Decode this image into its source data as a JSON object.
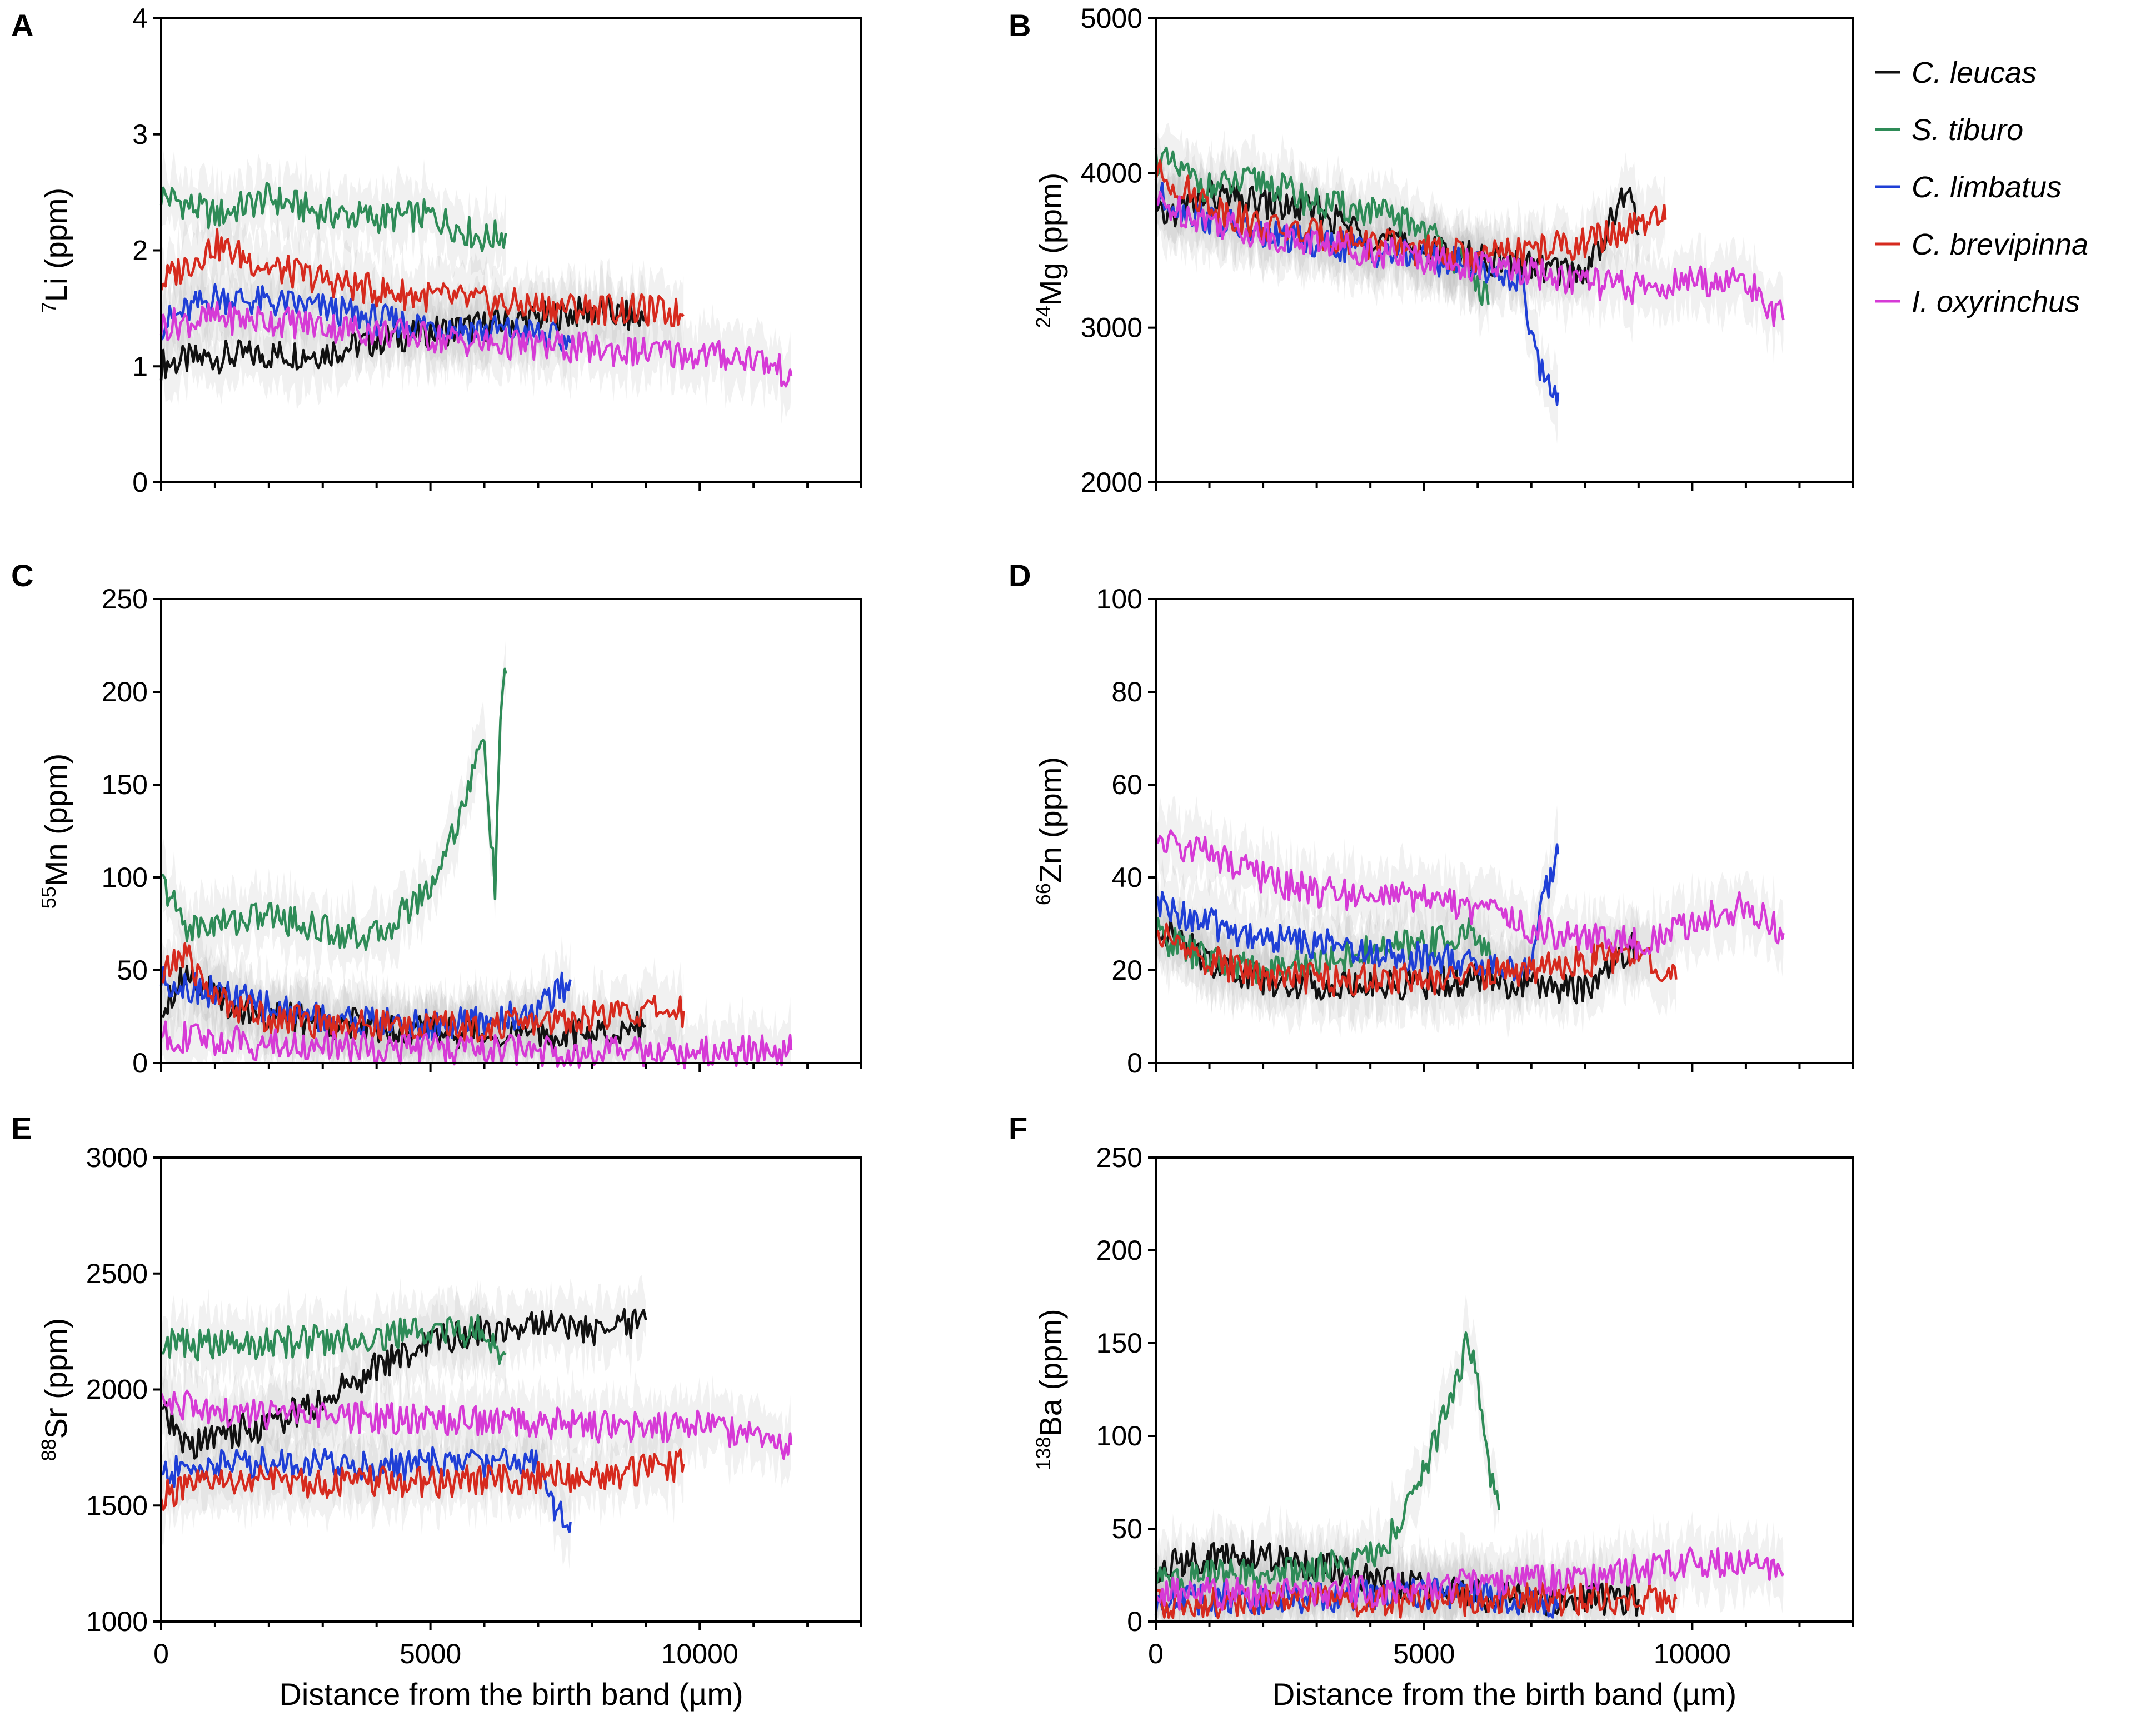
{
  "colors": {
    "C. leucas": "#111111",
    "S. tiburo": "#2e8b57",
    "C. limbatus": "#1f3fd6",
    "C. brevipinna": "#d62a1e",
    "I. oxyrinchus": "#d63ad6",
    "band": "#9a9a9a"
  },
  "legend": {
    "items": [
      "C. leucas",
      "S. tiburo",
      "C. limbatus",
      "C. brevipinna",
      "I. oxyrinchus"
    ]
  },
  "x_axis": {
    "label": "Distance from the birth band (µm)",
    "ticks": [
      0,
      5000,
      10000
    ],
    "tick_labels": [
      "0",
      "5000",
      "10000"
    ]
  },
  "chart_data": [
    {
      "panel": "A",
      "type": "line",
      "ylabel_sup": "7",
      "ylabel_main": "Li (ppm)",
      "xlim": [
        0,
        13000
      ],
      "ylim": [
        0,
        4
      ],
      "yticks": [
        0,
        1,
        2,
        3,
        4
      ],
      "ytick_labels": [
        "0",
        "1",
        "2",
        "3",
        "4"
      ],
      "series": [
        {
          "name": "C. leucas",
          "x": [
            0,
            1000,
            2000,
            3000,
            4000,
            5000,
            6000,
            7000,
            8000,
            9000
          ],
          "y": [
            1.02,
            1.08,
            1.1,
            1.12,
            1.22,
            1.3,
            1.35,
            1.42,
            1.48,
            1.4
          ]
        },
        {
          "name": "S. tiburo",
          "x": [
            0,
            1000,
            2000,
            3000,
            4000,
            5000,
            6000,
            6400
          ],
          "y": [
            2.48,
            2.3,
            2.45,
            2.32,
            2.28,
            2.3,
            2.1,
            2.15
          ]
        },
        {
          "name": "C. limbatus",
          "x": [
            0,
            1000,
            2000,
            3000,
            4000,
            5000,
            6000,
            7000,
            7600
          ],
          "y": [
            1.36,
            1.6,
            1.55,
            1.5,
            1.4,
            1.35,
            1.32,
            1.28,
            1.2
          ]
        },
        {
          "name": "C. brevipinna",
          "x": [
            0,
            1000,
            2000,
            3000,
            4000,
            5000,
            6000,
            7000,
            8000,
            9000,
            9700
          ],
          "y": [
            1.72,
            2.05,
            1.85,
            1.75,
            1.65,
            1.6,
            1.55,
            1.52,
            1.5,
            1.48,
            1.45
          ]
        },
        {
          "name": "I. oxyrinchus",
          "x": [
            0,
            1000,
            2000,
            3000,
            4000,
            5000,
            6000,
            7000,
            8000,
            9000,
            10000,
            11000,
            11700
          ],
          "y": [
            1.35,
            1.42,
            1.4,
            1.35,
            1.3,
            1.25,
            1.2,
            1.18,
            1.15,
            1.12,
            1.1,
            1.08,
            0.92
          ]
        }
      ]
    },
    {
      "panel": "B",
      "type": "line",
      "ylabel_sup": "24",
      "ylabel_main": "Mg (ppm)",
      "xlim": [
        0,
        13000
      ],
      "ylim": [
        2000,
        5000
      ],
      "yticks": [
        2000,
        3000,
        4000,
        5000
      ],
      "ytick_labels": [
        "2000",
        "3000",
        "4000",
        "5000"
      ],
      "series": [
        {
          "name": "C. leucas",
          "x": [
            0,
            1000,
            2000,
            3000,
            4000,
            5000,
            6000,
            7000,
            8000,
            8800,
            9000
          ],
          "y": [
            3700,
            3850,
            3800,
            3750,
            3600,
            3500,
            3450,
            3400,
            3350,
            3900,
            3600
          ]
        },
        {
          "name": "S. tiburo",
          "x": [
            0,
            1000,
            2000,
            3000,
            4000,
            5000,
            6000,
            6200
          ],
          "y": [
            4100,
            3900,
            3950,
            3800,
            3750,
            3650,
            3300,
            3150
          ]
        },
        {
          "name": "C. limbatus",
          "x": [
            0,
            1000,
            2000,
            3000,
            4000,
            5000,
            6000,
            6800,
            7200,
            7500
          ],
          "y": [
            3850,
            3700,
            3600,
            3550,
            3500,
            3450,
            3400,
            3300,
            2700,
            2580
          ]
        },
        {
          "name": "C. brevipinna",
          "x": [
            0,
            1000,
            2000,
            3000,
            4000,
            5000,
            6000,
            7000,
            8000,
            9000,
            9500
          ],
          "y": [
            4000,
            3800,
            3650,
            3600,
            3550,
            3500,
            3450,
            3500,
            3550,
            3650,
            3700
          ]
        },
        {
          "name": "I. oxyrinchus",
          "x": [
            0,
            1000,
            2000,
            3000,
            4000,
            5000,
            6000,
            7000,
            8000,
            9000,
            10000,
            11000,
            11700
          ],
          "y": [
            3800,
            3700,
            3600,
            3550,
            3500,
            3450,
            3400,
            3350,
            3300,
            3250,
            3300,
            3300,
            3050
          ]
        }
      ]
    },
    {
      "panel": "C",
      "type": "line",
      "ylabel_sup": "55",
      "ylabel_main": "Mn (ppm)",
      "xlim": [
        0,
        13000
      ],
      "ylim": [
        0,
        250
      ],
      "yticks": [
        0,
        50,
        100,
        150,
        200,
        250
      ],
      "ytick_labels": [
        "0",
        "50",
        "100",
        "150",
        "200",
        "250"
      ],
      "series": [
        {
          "name": "C. leucas",
          "x": [
            0,
            500,
            1000,
            2000,
            3000,
            4000,
            5000,
            6000,
            7000,
            8000,
            9000
          ],
          "y": [
            30,
            50,
            35,
            25,
            22,
            20,
            18,
            16,
            15,
            15,
            20
          ]
        },
        {
          "name": "S. tiburo",
          "x": [
            0,
            500,
            1000,
            2000,
            3000,
            4000,
            5000,
            5500,
            6000,
            6200,
            6300,
            6400
          ],
          "y": [
            98,
            72,
            75,
            80,
            72,
            68,
            95,
            130,
            175,
            90,
            190,
            210
          ]
        },
        {
          "name": "C. limbatus",
          "x": [
            0,
            1000,
            2000,
            3000,
            4000,
            5000,
            6000,
            7000,
            7600
          ],
          "y": [
            45,
            38,
            30,
            25,
            22,
            20,
            22,
            28,
            45
          ]
        },
        {
          "name": "C. brevipinna",
          "x": [
            0,
            400,
            1000,
            2000,
            3000,
            4000,
            5000,
            6000,
            7000,
            8000,
            9000,
            9700
          ],
          "y": [
            45,
            60,
            35,
            25,
            22,
            20,
            20,
            20,
            22,
            25,
            28,
            28
          ]
        },
        {
          "name": "I. oxyrinchus",
          "x": [
            0,
            1000,
            2000,
            3000,
            4000,
            5000,
            6000,
            7000,
            8000,
            9000,
            10000,
            11000,
            11700
          ],
          "y": [
            15,
            12,
            10,
            9,
            8,
            8,
            7,
            7,
            6,
            6,
            6,
            7,
            7
          ]
        }
      ]
    },
    {
      "panel": "D",
      "type": "line",
      "ylabel_sup": "66",
      "ylabel_main": "Zn (ppm)",
      "xlim": [
        0,
        13000
      ],
      "ylim": [
        0,
        100
      ],
      "yticks": [
        0,
        20,
        40,
        60,
        80,
        100
      ],
      "ytick_labels": [
        "0",
        "20",
        "40",
        "60",
        "80",
        "100"
      ],
      "series": [
        {
          "name": "C. leucas",
          "x": [
            0,
            1000,
            2000,
            3000,
            4000,
            5000,
            6000,
            7000,
            8000,
            9000
          ],
          "y": [
            30,
            22,
            18,
            17,
            17,
            17,
            18,
            17,
            16,
            26
          ]
        },
        {
          "name": "S. tiburo",
          "x": [
            0,
            1000,
            2000,
            3000,
            4000,
            5000,
            6000,
            6300
          ],
          "y": [
            28,
            22,
            20,
            22,
            24,
            26,
            28,
            22
          ]
        },
        {
          "name": "C. limbatus",
          "x": [
            0,
            1000,
            2000,
            3000,
            4000,
            5000,
            6000,
            7000,
            7200,
            7500
          ],
          "y": [
            34,
            30,
            27,
            26,
            24,
            23,
            21,
            20,
            35,
            45
          ]
        },
        {
          "name": "C. brevipinna",
          "x": [
            0,
            1000,
            2000,
            3000,
            4000,
            5000,
            6000,
            7000,
            8000,
            9000,
            9700
          ],
          "y": [
            28,
            22,
            19,
            18,
            18,
            18,
            19,
            20,
            22,
            23,
            18
          ]
        },
        {
          "name": "I. oxyrinchus",
          "x": [
            0,
            1000,
            2000,
            3000,
            4000,
            5000,
            6000,
            7000,
            8000,
            9000,
            10000,
            11000,
            11700
          ],
          "y": [
            48,
            45,
            40,
            37,
            36,
            35,
            33,
            29,
            27,
            26,
            30,
            34,
            28
          ]
        }
      ]
    },
    {
      "panel": "E",
      "type": "line",
      "ylabel_sup": "88",
      "ylabel_main": "Sr (ppm)",
      "xlim": [
        0,
        13000
      ],
      "ylim": [
        1000,
        3000
      ],
      "yticks": [
        1000,
        1500,
        2000,
        2500,
        3000
      ],
      "ytick_labels": [
        "1000",
        "1500",
        "2000",
        "2500",
        "3000"
      ],
      "series": [
        {
          "name": "C. leucas",
          "x": [
            0,
            500,
            1000,
            2000,
            3000,
            4000,
            5000,
            6000,
            7000,
            8000,
            9000
          ],
          "y": [
            1900,
            1750,
            1800,
            1850,
            1950,
            2100,
            2200,
            2250,
            2300,
            2250,
            2300
          ]
        },
        {
          "name": "S. tiburo",
          "x": [
            0,
            1000,
            2000,
            3000,
            4000,
            5000,
            6000,
            6400
          ],
          "y": [
            2200,
            2190,
            2200,
            2210,
            2230,
            2250,
            2250,
            2150
          ]
        },
        {
          "name": "C. limbatus",
          "x": [
            0,
            1000,
            2000,
            3000,
            4000,
            5000,
            6000,
            7000,
            7300,
            7600
          ],
          "y": [
            1630,
            1680,
            1690,
            1680,
            1670,
            1680,
            1690,
            1700,
            1500,
            1430
          ]
        },
        {
          "name": "C. brevipinna",
          "x": [
            0,
            1000,
            2000,
            3000,
            4000,
            5000,
            6000,
            7000,
            8000,
            9000,
            9700
          ],
          "y": [
            1540,
            1600,
            1610,
            1600,
            1600,
            1600,
            1610,
            1620,
            1630,
            1650,
            1680
          ]
        },
        {
          "name": "I. oxyrinchus",
          "x": [
            0,
            1000,
            2000,
            3000,
            4000,
            5000,
            6000,
            7000,
            8000,
            9000,
            10000,
            11000,
            11700
          ],
          "y": [
            1960,
            1890,
            1890,
            1880,
            1880,
            1870,
            1860,
            1860,
            1840,
            1840,
            1850,
            1800,
            1760
          ]
        }
      ]
    },
    {
      "panel": "F",
      "type": "line",
      "ylabel_sup": "138",
      "ylabel_main": "Ba (ppm)",
      "xlim": [
        0,
        13000
      ],
      "ylim": [
        0,
        250
      ],
      "yticks": [
        0,
        50,
        100,
        150,
        200,
        250
      ],
      "ytick_labels": [
        "0",
        "50",
        "100",
        "150",
        "200",
        "250"
      ],
      "series": [
        {
          "name": "C. leucas",
          "x": [
            0,
            500,
            1000,
            2000,
            3000,
            4000,
            5000,
            6000,
            7000,
            8000,
            9000
          ],
          "y": [
            25,
            33,
            35,
            35,
            30,
            22,
            18,
            14,
            12,
            12,
            12
          ]
        },
        {
          "name": "S. tiburo",
          "x": [
            0,
            1000,
            2000,
            3000,
            4000,
            4500,
            5000,
            5500,
            5800,
            6000,
            6200,
            6400
          ],
          "y": [
            22,
            25,
            25,
            28,
            35,
            50,
            80,
            120,
            150,
            130,
            80,
            60
          ]
        },
        {
          "name": "C. limbatus",
          "x": [
            0,
            1000,
            2000,
            3000,
            4000,
            5000,
            6000,
            7000,
            7500
          ],
          "y": [
            12,
            12,
            12,
            13,
            14,
            15,
            14,
            12,
            10
          ]
        },
        {
          "name": "C. brevipinna",
          "x": [
            0,
            1000,
            2000,
            3000,
            4000,
            5000,
            6000,
            7000,
            8000,
            9000,
            9700
          ],
          "y": [
            10,
            10,
            10,
            11,
            11,
            11,
            12,
            12,
            12,
            12,
            12
          ]
        },
        {
          "name": "I. oxyrinchus",
          "x": [
            0,
            1000,
            2000,
            3000,
            4000,
            5000,
            6000,
            7000,
            8000,
            9000,
            10000,
            11000,
            11700
          ],
          "y": [
            15,
            15,
            15,
            16,
            16,
            18,
            20,
            22,
            24,
            28,
            32,
            30,
            26
          ]
        }
      ]
    }
  ]
}
